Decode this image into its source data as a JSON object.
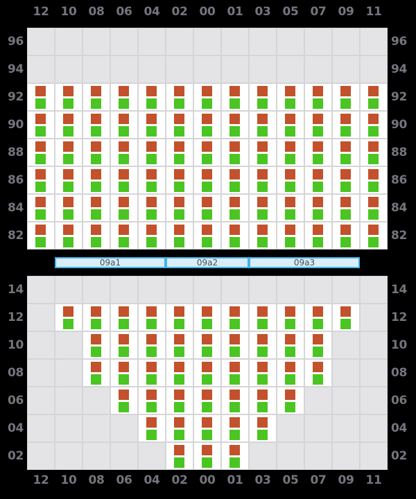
{
  "colors": {
    "background": "#000000",
    "grid_line": "#d5d5d8",
    "empty_cell": "#e4e4e6",
    "filled_cell": "#ffffff",
    "square_orange": "#c2512c",
    "square_green": "#4bc521",
    "axis_label": "#75757f",
    "hatch_fill": "#d9edfa",
    "hatch_border": "#41b4e9",
    "hatch_label": "#4c4c54"
  },
  "row_numbers": [
    "12",
    "10",
    "08",
    "06",
    "04",
    "02",
    "00",
    "01",
    "03",
    "05",
    "07",
    "09",
    "11"
  ],
  "deck": {
    "tiers": [
      {
        "label": "96",
        "filled_from": -1,
        "filled_to": -1
      },
      {
        "label": "94",
        "filled_from": -1,
        "filled_to": -1
      },
      {
        "label": "92",
        "filled_from": 0,
        "filled_to": 12
      },
      {
        "label": "90",
        "filled_from": 0,
        "filled_to": 12
      },
      {
        "label": "88",
        "filled_from": 0,
        "filled_to": 12
      },
      {
        "label": "86",
        "filled_from": 0,
        "filled_to": 12
      },
      {
        "label": "84",
        "filled_from": 0,
        "filled_to": 12
      },
      {
        "label": "82",
        "filled_from": 0,
        "filled_to": 12
      }
    ]
  },
  "hatch_covers": [
    {
      "label": "09a1",
      "col_from": 1,
      "col_to": 4
    },
    {
      "label": "09a2",
      "col_from": 5,
      "col_to": 7
    },
    {
      "label": "09a3",
      "col_from": 8,
      "col_to": 11
    }
  ],
  "hold": {
    "tiers": [
      {
        "label": "14",
        "filled_from": -1,
        "filled_to": -1
      },
      {
        "label": "12",
        "filled_from": 1,
        "filled_to": 11
      },
      {
        "label": "10",
        "filled_from": 2,
        "filled_to": 10
      },
      {
        "label": "08",
        "filled_from": 2,
        "filled_to": 10
      },
      {
        "label": "06",
        "filled_from": 3,
        "filled_to": 9
      },
      {
        "label": "04",
        "filled_from": 4,
        "filled_to": 8
      },
      {
        "label": "02",
        "filled_from": 5,
        "filled_to": 7
      }
    ]
  },
  "slot_indicators": {
    "top_square": "orange-square",
    "bottom_square": "green-square"
  }
}
